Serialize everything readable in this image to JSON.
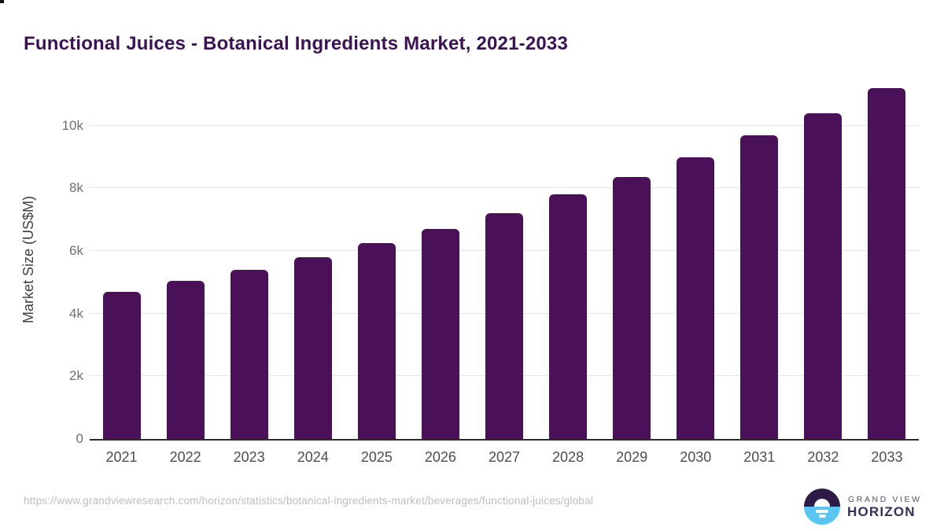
{
  "title": "Functional Juices - Botanical Ingredients Market, 2021-2033",
  "chart_data": {
    "type": "bar",
    "title": "Functional Juices - Botanical Ingredients Market, 2021-2033",
    "categories": [
      "2021",
      "2022",
      "2023",
      "2024",
      "2025",
      "2026",
      "2027",
      "2028",
      "2029",
      "2030",
      "2031",
      "2032",
      "2033"
    ],
    "values": [
      4700,
      5050,
      5400,
      5800,
      6250,
      6700,
      7200,
      7800,
      8350,
      9000,
      9700,
      10400,
      11200
    ],
    "xlabel": "",
    "ylabel": "Market Size (US$M)",
    "ylim": [
      0,
      11550
    ],
    "yticks": [
      {
        "value": 0,
        "label": "0"
      },
      {
        "value": 2000,
        "label": "2k"
      },
      {
        "value": 4000,
        "label": "4k"
      },
      {
        "value": 6000,
        "label": "6k"
      },
      {
        "value": 8000,
        "label": "8k"
      },
      {
        "value": 10000,
        "label": "10k"
      }
    ],
    "grid": "horizontal",
    "legend": "none"
  },
  "colors": {
    "bar": "#4a1159",
    "title": "#3b1253",
    "gridline": "#e6e6e6",
    "axis_line": "#2b2b2b",
    "tick_label": "#6f6f6f",
    "x_label": "#4d4d4d",
    "url_text": "#bdbdbd",
    "logo_dark": "#2d1a47",
    "logo_blue": "#59c5f2"
  },
  "footer": {
    "source_url": "https://www.grandviewresearch.com/horizon/statistics/botanical-ingredients-market/beverages/functional-juices/global",
    "logo": {
      "line1": "GRAND VIEW",
      "line2": "HORIZON"
    }
  }
}
